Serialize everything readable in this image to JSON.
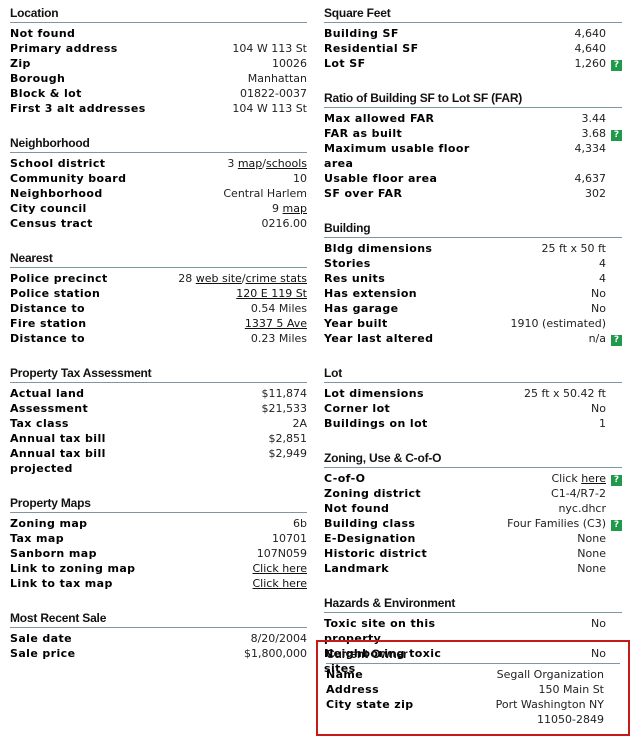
{
  "left": {
    "location": {
      "title": "Location",
      "rows": [
        {
          "label": "Not found",
          "value": ""
        },
        {
          "label": "Primary address",
          "value": "104 W 113 St"
        },
        {
          "label": "Zip",
          "value": "10026"
        },
        {
          "label": "Borough",
          "value": "Manhattan"
        },
        {
          "label": "Block & lot",
          "value": "01822-0037"
        },
        {
          "label": "First 3 alt addresses",
          "value": "104 W 113 St"
        }
      ]
    },
    "neighborhood": {
      "title": "Neighborhood",
      "school_district": {
        "label": "School district",
        "num": "3",
        "link1": "map",
        "sep": "/",
        "link2": "schools"
      },
      "community_board": {
        "label": "Community board",
        "value": "10"
      },
      "neighborhood": {
        "label": "Neighborhood",
        "value": "Central Harlem"
      },
      "city_council": {
        "label": "City council",
        "num": "9",
        "link": "map"
      },
      "census_tract": {
        "label": "Census tract",
        "value": "0216.00"
      }
    },
    "nearest": {
      "title": "Nearest",
      "police_precinct": {
        "label": "Police precinct",
        "num": "28",
        "link1": "web site",
        "sep": "/",
        "link2": "crime stats"
      },
      "police_station": {
        "label": "Police station",
        "link": "120 E 119 St"
      },
      "police_distance": {
        "label": "Distance to",
        "value": "0.54 Miles"
      },
      "fire_station": {
        "label": "Fire station",
        "link": "1337 5 Ave"
      },
      "fire_distance": {
        "label": "Distance to",
        "value": "0.23 Miles"
      }
    },
    "tax": {
      "title": "Property Tax Assessment",
      "rows": [
        {
          "label": "Actual land",
          "value": "$11,874"
        },
        {
          "label": "Assessment",
          "value": "$21,533"
        },
        {
          "label": "Tax class",
          "value": "2A"
        },
        {
          "label": "Annual tax bill",
          "value": "$2,851"
        },
        {
          "label": "Annual tax bill projected",
          "value": "$2,949"
        }
      ]
    },
    "maps": {
      "title": "Property Maps",
      "rows": [
        {
          "label": "Zoning map",
          "value": "6b"
        },
        {
          "label": "Tax map",
          "value": "10701"
        },
        {
          "label": "Sanborn map",
          "value": "107N059"
        }
      ],
      "zoning_link": {
        "label": "Link to zoning map",
        "link": "Click here"
      },
      "tax_link": {
        "label": "Link to tax map",
        "link": "Click here"
      }
    },
    "sale": {
      "title": "Most Recent Sale",
      "rows": [
        {
          "label": "Sale date",
          "value": "8/20/2004"
        },
        {
          "label": "Sale price",
          "value": "$1,800,000"
        }
      ]
    }
  },
  "right": {
    "sqft": {
      "title": "Square Feet",
      "rows": [
        {
          "label": "Building SF",
          "value": "4,640"
        },
        {
          "label": "Residential SF",
          "value": "4,640"
        },
        {
          "label": "Lot SF",
          "value": "1,260",
          "help": "?"
        }
      ]
    },
    "far": {
      "title": "Ratio of Building SF to Lot SF (FAR)",
      "rows": [
        {
          "label": "Max allowed FAR",
          "value": "3.44"
        },
        {
          "label": "FAR as built",
          "value": "3.68",
          "help": "?"
        },
        {
          "label": "Maximum usable floor area",
          "value": "4,334"
        },
        {
          "label": "Usable floor area",
          "value": "4,637"
        },
        {
          "label": "SF over FAR",
          "value": "302"
        }
      ]
    },
    "building": {
      "title": "Building",
      "rows": [
        {
          "label": "Bldg dimensions",
          "value": "25 ft x 50 ft"
        },
        {
          "label": "Stories",
          "value": "4"
        },
        {
          "label": "Res units",
          "value": "4"
        },
        {
          "label": "Has extension",
          "value": "No"
        },
        {
          "label": "Has garage",
          "value": "No"
        },
        {
          "label": "Year built",
          "value": "1910 (estimated)"
        },
        {
          "label": "Year last altered",
          "value": "n/a",
          "help": "?"
        }
      ]
    },
    "lot": {
      "title": "Lot",
      "rows": [
        {
          "label": "Lot dimensions",
          "value": "25 ft x 50.42 ft"
        },
        {
          "label": "Corner lot",
          "value": "No"
        },
        {
          "label": "Buildings on lot",
          "value": "1"
        }
      ]
    },
    "zoning": {
      "title": "Zoning, Use & C-of-O",
      "cofo": {
        "label": "C-of-O",
        "prefix": "Click",
        "link": "here",
        "help": "?"
      },
      "rows": [
        {
          "label": "Zoning district",
          "value": "C1-4/R7-2"
        },
        {
          "label": "Not found",
          "value": "nyc.dhcr"
        }
      ],
      "building_class": {
        "label": "Building class",
        "value": "Four Families (C3)",
        "help": "?"
      },
      "rows2": [
        {
          "label": "E-Designation",
          "value": "None"
        },
        {
          "label": "Historic district",
          "value": "None"
        },
        {
          "label": "Landmark",
          "value": "None"
        }
      ]
    },
    "hazards": {
      "title": "Hazards & Environment",
      "rows": [
        {
          "label": "Toxic site on this property",
          "value": "No"
        },
        {
          "label": "Neighboring toxic sites",
          "value": "No"
        }
      ]
    },
    "owner": {
      "title": "Current Owner",
      "rows": [
        {
          "label": "Name",
          "value": "Segall Organization"
        },
        {
          "label": "Address",
          "value": "150 Main St"
        }
      ],
      "city": {
        "label": "City state zip",
        "line1": "Port Washington NY",
        "line2": "11050-2849"
      }
    }
  },
  "colors": {
    "help_badge": "#1e9a4a",
    "highlight_border": "#c41a1a",
    "rule": "#7f96a3"
  }
}
